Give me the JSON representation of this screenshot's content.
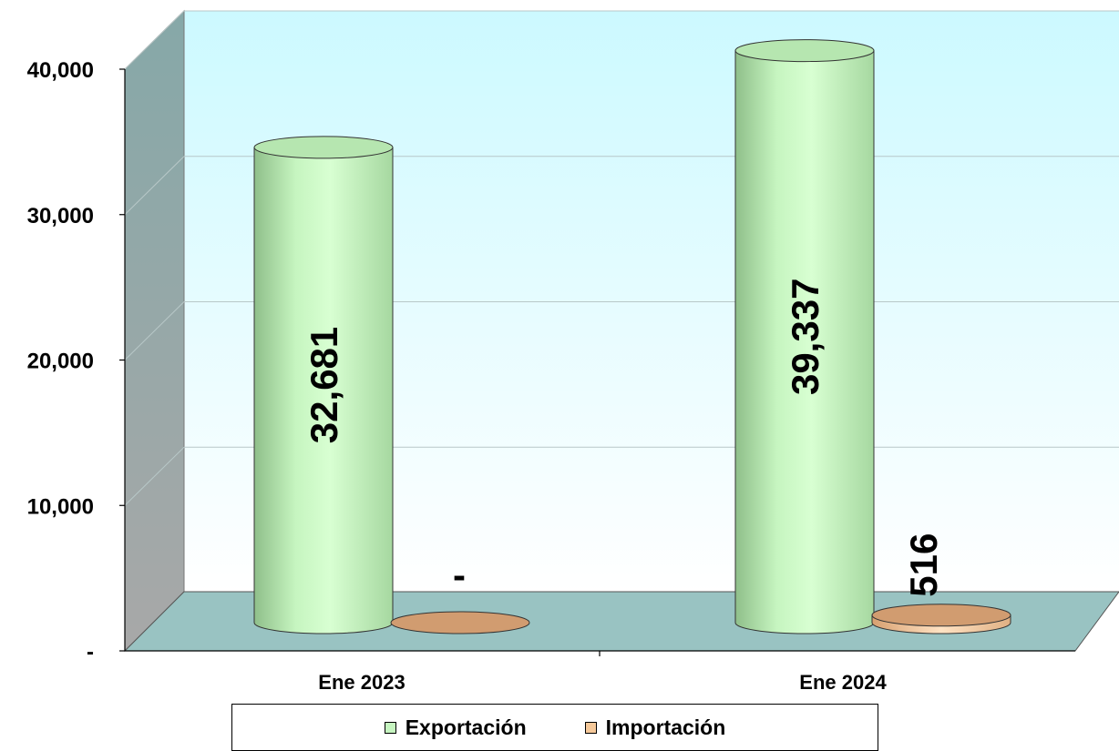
{
  "chart_data": {
    "type": "bar",
    "style": "3d-cylinder",
    "categories": [
      "Ene 2023",
      "Ene 2024"
    ],
    "series": [
      {
        "name": "Exportación",
        "values": [
          32681,
          39337
        ],
        "color": "#c6f5c0",
        "labels": [
          "32,681",
          "39,337"
        ]
      },
      {
        "name": "Importación",
        "values": [
          0,
          516
        ],
        "color": "#f6c99a",
        "labels": [
          "-",
          "516"
        ]
      }
    ],
    "y_ticks": [
      {
        "value": 0,
        "label": "-"
      },
      {
        "value": 10000,
        "label": "10,000"
      },
      {
        "value": 20000,
        "label": "20,000"
      },
      {
        "value": 30000,
        "label": "30,000"
      },
      {
        "value": 40000,
        "label": "40,000"
      }
    ],
    "ylim": [
      0,
      40000
    ],
    "grid": true,
    "legend_position": "bottom",
    "colors": {
      "wall_top": "#ccf9ff",
      "wall_bottom": "#ffffff",
      "floor": "#99c3c2",
      "side_wall": "#8aa7a7"
    }
  }
}
